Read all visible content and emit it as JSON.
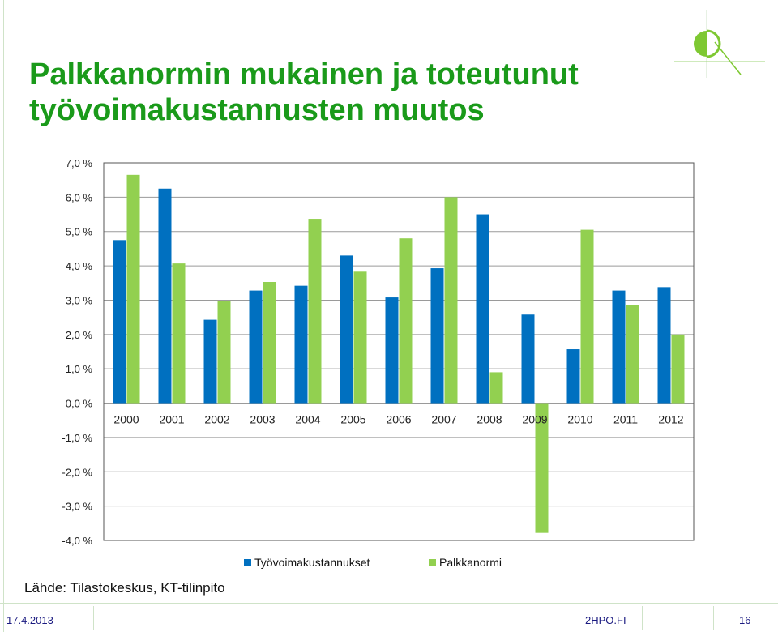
{
  "slide": {
    "title_line1": "Palkkanormin mukainen ja toteutunut",
    "title_line2": "työvoimakustannusten muutos",
    "source": "Lähde: Tilastokeskus, KT-tilinpito",
    "footer_date": "17.4.2013",
    "footer_site": "2HPO.FI",
    "footer_page": "16"
  },
  "colors": {
    "title": "#1a9a1a",
    "series1": "#0070c0",
    "series2": "#92d050"
  },
  "chart_data": {
    "type": "bar",
    "categories": [
      "2000",
      "2001",
      "2002",
      "2003",
      "2004",
      "2005",
      "2006",
      "2007",
      "2008",
      "2009",
      "2010",
      "2011",
      "2012"
    ],
    "series": [
      {
        "name": "Työvoimakustannukset",
        "values": [
          4.75,
          6.25,
          2.43,
          3.28,
          3.42,
          4.3,
          3.08,
          3.93,
          5.5,
          2.58,
          1.57,
          3.28,
          3.38
        ]
      },
      {
        "name": "Palkkanormi",
        "values": [
          6.65,
          4.07,
          2.97,
          3.53,
          5.37,
          3.83,
          4.8,
          6.0,
          0.9,
          -3.78,
          5.05,
          2.85,
          2.0
        ]
      }
    ],
    "yticks": [
      "7,0 %",
      "6,0 %",
      "5,0 %",
      "4,0 %",
      "3,0 %",
      "2,0 %",
      "1,0 %",
      "0,0 %",
      "-1,0 %",
      "-2,0 %",
      "-3,0 %",
      "-4,0 %"
    ],
    "ylim": [
      -4,
      7
    ],
    "ystep": 1,
    "grid": true,
    "legend_position": "bottom"
  }
}
